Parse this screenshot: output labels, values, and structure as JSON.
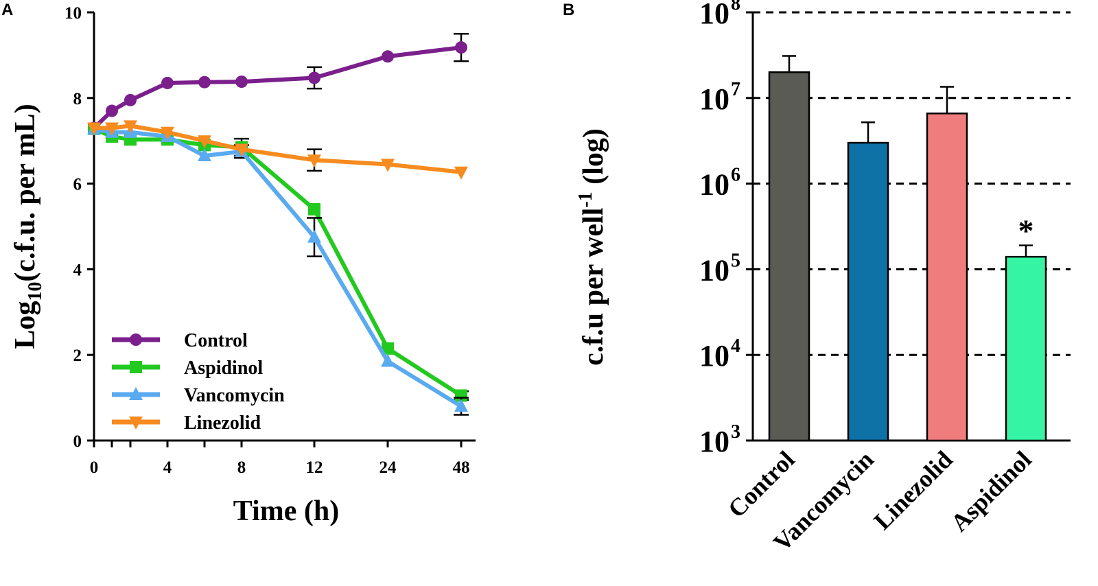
{
  "panels": {
    "a_label": "A",
    "b_label": "B"
  },
  "chart_data": [
    {
      "type": "line",
      "panel": "A",
      "xlabel": "Time (h)",
      "ylabel_main": "Log",
      "ylabel_sub": "10",
      "ylabel_rest": "(c.f.u. per mL)",
      "ylim": [
        0,
        10
      ],
      "x": [
        0,
        1,
        2,
        4,
        6,
        8,
        12,
        24,
        48
      ],
      "x_tick_labels": [
        "0",
        "4",
        "8",
        "12",
        "24",
        "48"
      ],
      "x_tick_values": [
        0,
        4,
        8,
        12,
        24,
        48
      ],
      "y_ticks": [
        "0",
        "2",
        "4",
        "6",
        "8",
        "10"
      ],
      "legend_position": "bottom-left",
      "series": [
        {
          "name": "Control",
          "color": "#7b1f8c",
          "marker": "circle",
          "values": [
            7.3,
            7.7,
            7.95,
            8.35,
            8.37,
            8.38,
            8.47,
            8.97,
            9.18
          ],
          "errors": [
            0,
            0,
            0,
            0,
            0,
            0,
            0.25,
            0,
            0.32
          ]
        },
        {
          "name": "Aspidinol",
          "color": "#22c91f",
          "marker": "square",
          "values": [
            7.28,
            7.1,
            7.03,
            7.03,
            6.9,
            6.85,
            5.4,
            2.15,
            1.05
          ],
          "errors": [
            0,
            0,
            0,
            0,
            0,
            0.2,
            0,
            0,
            0.1
          ]
        },
        {
          "name": "Vancomycin",
          "color": "#5aaaf0",
          "marker": "triangle-up",
          "values": [
            7.27,
            7.2,
            7.2,
            7.1,
            6.65,
            6.75,
            4.75,
            1.85,
            0.8
          ],
          "errors": [
            0,
            0,
            0,
            0,
            0,
            0.15,
            0.45,
            0,
            0.2
          ]
        },
        {
          "name": "Linezolid",
          "color": "#f68b1f",
          "marker": "triangle-down",
          "values": [
            7.3,
            7.3,
            7.35,
            7.2,
            7.0,
            6.8,
            6.55,
            6.45,
            6.27
          ],
          "errors": [
            0,
            0,
            0,
            0,
            0,
            0,
            0.25,
            0,
            0
          ]
        }
      ]
    },
    {
      "type": "bar",
      "panel": "B",
      "ylabel_main": "c.f.u per well",
      "ylabel_sup": "-1",
      "ylabel_rest": " (log)",
      "yscale": "log",
      "ylim": [
        1000,
        100000000
      ],
      "y_tick_exponents": [
        "3",
        "4",
        "5",
        "6",
        "7",
        "8"
      ],
      "y_tick_base": "10",
      "gridlines": "dashed",
      "categories": [
        "Control",
        "Vancomycin",
        "Linezolid",
        "Aspidinol"
      ],
      "values": [
        20000000,
        3000000,
        6600000,
        140000
      ],
      "error_upper": [
        31000000,
        5200000,
        13500000,
        190000
      ],
      "colors": [
        "#5b5b55",
        "#0e72a6",
        "#f07d7d",
        "#35f5a5"
      ],
      "annotations": [
        "",
        "",
        "",
        "*"
      ]
    }
  ]
}
